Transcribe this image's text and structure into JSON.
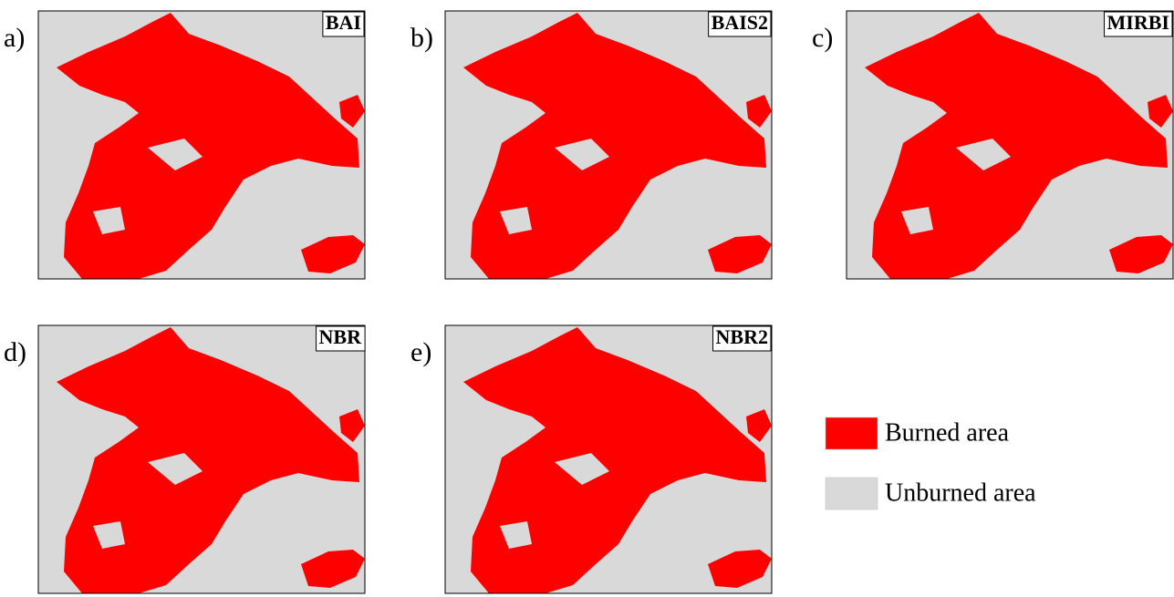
{
  "panels": [
    {
      "label": "a)",
      "name": "BAI"
    },
    {
      "label": "b)",
      "name": "BAIS2"
    },
    {
      "label": "c)",
      "name": "MIRBI"
    },
    {
      "label": "d)",
      "name": "NBR"
    },
    {
      "label": "e)",
      "name": "NBR2"
    }
  ],
  "legend": [
    {
      "label": "Burned area",
      "color": "#ff0000"
    },
    {
      "label": "Unburned area",
      "color": "#d9d9d9"
    }
  ]
}
